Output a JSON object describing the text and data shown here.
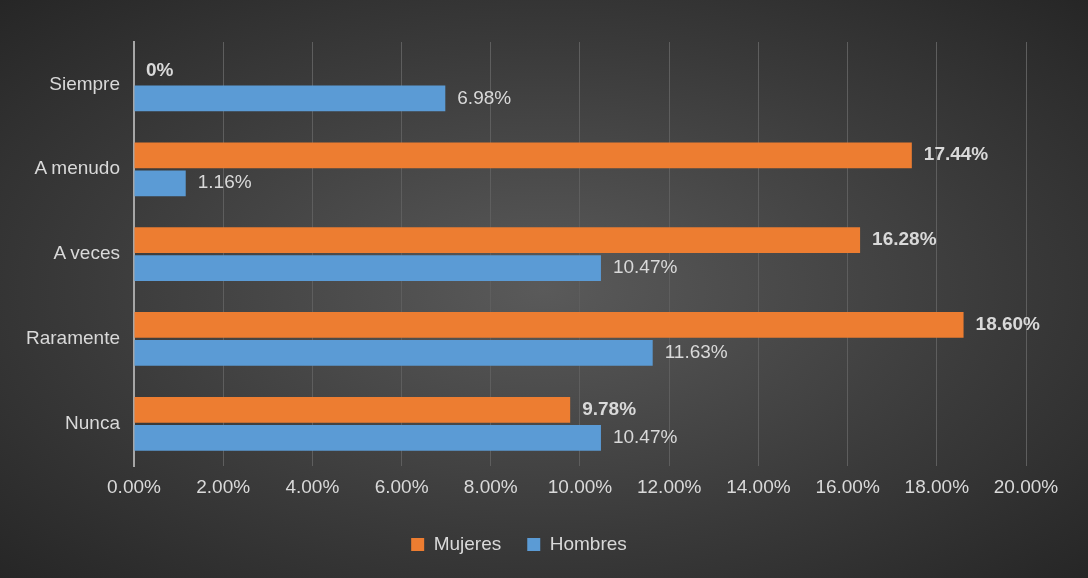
{
  "chart_data": {
    "type": "bar",
    "orientation": "horizontal",
    "categories": [
      "Siempre",
      "A menudo",
      "A veces",
      "Raramente",
      "Nunca"
    ],
    "series": [
      {
        "name": "Mujeres",
        "color": "#ed7d31",
        "values": [
          0,
          17.44,
          16.28,
          18.6,
          9.78
        ],
        "value_labels": [
          "0%",
          "17.44%",
          "16.28%",
          "18.60%",
          "9.78%"
        ]
      },
      {
        "name": "Hombres",
        "color": "#5b9bd5",
        "values": [
          6.98,
          1.16,
          10.47,
          11.63,
          10.47
        ],
        "value_labels": [
          "6.98%",
          "1.16%",
          "10.47%",
          "11.63%",
          "10.47%"
        ]
      }
    ],
    "xlim": [
      0,
      20
    ],
    "xticks": [
      {
        "value": 0,
        "label": "0.00%"
      },
      {
        "value": 2,
        "label": "2.00%"
      },
      {
        "value": 4,
        "label": "4.00%"
      },
      {
        "value": 6,
        "label": "6.00%"
      },
      {
        "value": 8,
        "label": "8.00%"
      },
      {
        "value": 10,
        "label": "10.00%"
      },
      {
        "value": 12,
        "label": "12.00%"
      },
      {
        "value": 14,
        "label": "14.00%"
      },
      {
        "value": 16,
        "label": "16.00%"
      },
      {
        "value": 18,
        "label": "18.00%"
      },
      {
        "value": 20,
        "label": "20.00%"
      }
    ],
    "grid": "x",
    "legend": "bottom"
  }
}
